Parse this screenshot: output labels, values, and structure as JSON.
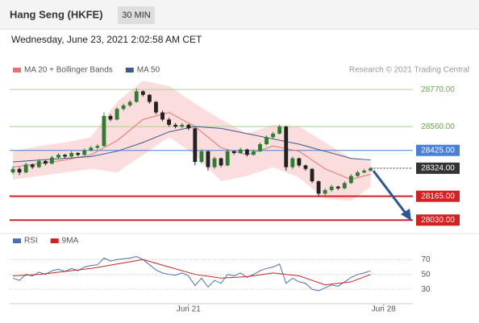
{
  "header": {
    "title": "Hang Seng (HKFE)",
    "interval": "30 MIN",
    "timestamp": "Wednesday, June 23, 2021 2:02:58 AM CET",
    "source": "Research © 2021 Trading Central"
  },
  "chart_data": [
    {
      "type": "candlestick",
      "xlim": [
        -0.5,
        61.5
      ],
      "ylim": [
        27990,
        28830
      ],
      "up_color": "#2e7d32",
      "down_color": "#222222",
      "ohlc": [
        [
          28300,
          28335,
          28290,
          28320
        ],
        [
          28320,
          28330,
          28285,
          28300
        ],
        [
          28300,
          28355,
          28295,
          28345
        ],
        [
          28345,
          28350,
          28320,
          28330
        ],
        [
          28330,
          28375,
          28325,
          28365
        ],
        [
          28365,
          28370,
          28340,
          28350
        ],
        [
          28350,
          28395,
          28345,
          28385
        ],
        [
          28385,
          28410,
          28375,
          28400
        ],
        [
          28400,
          28405,
          28380,
          28390
        ],
        [
          28390,
          28420,
          28385,
          28410
        ],
        [
          28410,
          28415,
          28390,
          28400
        ],
        [
          28400,
          28435,
          28395,
          28425
        ],
        [
          28425,
          28450,
          28420,
          28440
        ],
        [
          28440,
          28460,
          28430,
          28450
        ],
        [
          28450,
          28640,
          28445,
          28620
        ],
        [
          28620,
          28630,
          28590,
          28600
        ],
        [
          28600,
          28670,
          28595,
          28660
        ],
        [
          28660,
          28690,
          28650,
          28680
        ],
        [
          28680,
          28710,
          28670,
          28700
        ],
        [
          28700,
          28775,
          28695,
          28760
        ],
        [
          28760,
          28765,
          28730,
          28740
        ],
        [
          28740,
          28745,
          28690,
          28700
        ],
        [
          28700,
          28705,
          28630,
          28640
        ],
        [
          28640,
          28650,
          28590,
          28600
        ],
        [
          28600,
          28610,
          28560,
          28570
        ],
        [
          28570,
          28580,
          28550,
          28560
        ],
        [
          28560,
          28580,
          28550,
          28570
        ],
        [
          28570,
          28575,
          28540,
          28550
        ],
        [
          28550,
          28555,
          28340,
          28360
        ],
        [
          28360,
          28430,
          28350,
          28420
        ],
        [
          28420,
          28425,
          28310,
          28330
        ],
        [
          28330,
          28390,
          28320,
          28380
        ],
        [
          28380,
          28385,
          28330,
          28340
        ],
        [
          28340,
          28430,
          28335,
          28420
        ],
        [
          28420,
          28425,
          28400,
          28410
        ],
        [
          28410,
          28440,
          28405,
          28430
        ],
        [
          28430,
          28435,
          28390,
          28400
        ],
        [
          28400,
          28430,
          28395,
          28420
        ],
        [
          28420,
          28470,
          28415,
          28460
        ],
        [
          28460,
          28510,
          28455,
          28500
        ],
        [
          28500,
          28530,
          28490,
          28520
        ],
        [
          28520,
          28570,
          28515,
          28560
        ],
        [
          28560,
          28565,
          28310,
          28330
        ],
        [
          28330,
          28390,
          28320,
          28380
        ],
        [
          28380,
          28385,
          28330,
          28340
        ],
        [
          28340,
          28345,
          28310,
          28320
        ],
        [
          28320,
          28325,
          28240,
          28250
        ],
        [
          28250,
          28255,
          28165,
          28180
        ],
        [
          28180,
          28210,
          28170,
          28200
        ],
        [
          28200,
          28230,
          28190,
          28220
        ],
        [
          28220,
          28225,
          28200,
          28210
        ],
        [
          28210,
          28250,
          28205,
          28240
        ],
        [
          28240,
          28290,
          28235,
          28280
        ],
        [
          28280,
          28310,
          28275,
          28300
        ],
        [
          28300,
          28320,
          28295,
          28310
        ],
        [
          28310,
          28330,
          28305,
          28324
        ]
      ],
      "series": [
        {
          "name": "MA 20 + Bollinger Bands",
          "color": "#e57373",
          "band_color": "#fbd5d5",
          "x": [
            0,
            4,
            8,
            12,
            16,
            20,
            24,
            28,
            32,
            36,
            40,
            44,
            48,
            52,
            55
          ],
          "values": [
            28330,
            28350,
            28370,
            28400,
            28480,
            28600,
            28640,
            28560,
            28440,
            28400,
            28450,
            28420,
            28320,
            28260,
            28290
          ],
          "upper": [
            28420,
            28450,
            28470,
            28500,
            28700,
            28820,
            28790,
            28690,
            28600,
            28520,
            28570,
            28560,
            28470,
            28380,
            28360
          ],
          "lower": [
            28260,
            28280,
            28300,
            28320,
            28300,
            28400,
            28500,
            28400,
            28250,
            28280,
            28330,
            28270,
            28150,
            28140,
            28220
          ]
        },
        {
          "name": "MA 50",
          "color": "#3d5a8a",
          "x": [
            0,
            4,
            8,
            12,
            16,
            20,
            24,
            28,
            32,
            36,
            40,
            44,
            48,
            52,
            55
          ],
          "values": [
            28360,
            28370,
            28380,
            28390,
            28420,
            28470,
            28530,
            28560,
            28550,
            28520,
            28490,
            28460,
            28420,
            28380,
            28370
          ]
        }
      ],
      "levels": [
        {
          "value": 28770,
          "label": "28770.00",
          "color": "#a5d38a",
          "style": "line"
        },
        {
          "value": 28560,
          "label": "28560.00",
          "color": "#a5d38a",
          "style": "line"
        },
        {
          "value": 28425,
          "label": "28425.00",
          "color": "#4a7fd8",
          "style": "box"
        },
        {
          "value": 28324,
          "label": "28324.00",
          "color": "#333333",
          "style": "dotted"
        },
        {
          "value": 28165,
          "label": "28165.00",
          "color": "#d32020",
          "style": "box"
        },
        {
          "value": 28030,
          "label": "28030.00",
          "color": "#d32020",
          "style": "box"
        }
      ]
    },
    {
      "type": "line",
      "xlim": [
        -0.5,
        61.5
      ],
      "ylim": [
        15,
        80
      ],
      "yticks": [
        70,
        50,
        30
      ],
      "xticks": [
        {
          "value": 27,
          "label": "Jun 21"
        },
        {
          "value": 57,
          "label": "Jun 28"
        }
      ],
      "series": [
        {
          "name": "RSI",
          "color": "#4a72b0",
          "values": [
            45,
            42,
            50,
            48,
            53,
            50,
            55,
            57,
            54,
            58,
            55,
            60,
            62,
            63,
            72,
            68,
            70,
            71,
            72,
            74,
            70,
            63,
            56,
            52,
            50,
            49,
            52,
            48,
            35,
            45,
            33,
            42,
            38,
            50,
            48,
            52,
            46,
            50,
            55,
            58,
            60,
            64,
            38,
            45,
            40,
            38,
            30,
            28,
            32,
            36,
            34,
            40,
            46,
            50,
            52,
            55
          ]
        },
        {
          "name": "9MA",
          "color": "#cc2222",
          "x": [
            0,
            4,
            8,
            12,
            16,
            20,
            24,
            28,
            32,
            36,
            40,
            44,
            48,
            52,
            55
          ],
          "values": [
            48,
            50,
            54,
            58,
            64,
            70,
            60,
            50,
            45,
            47,
            52,
            48,
            36,
            40,
            50
          ]
        }
      ]
    }
  ]
}
